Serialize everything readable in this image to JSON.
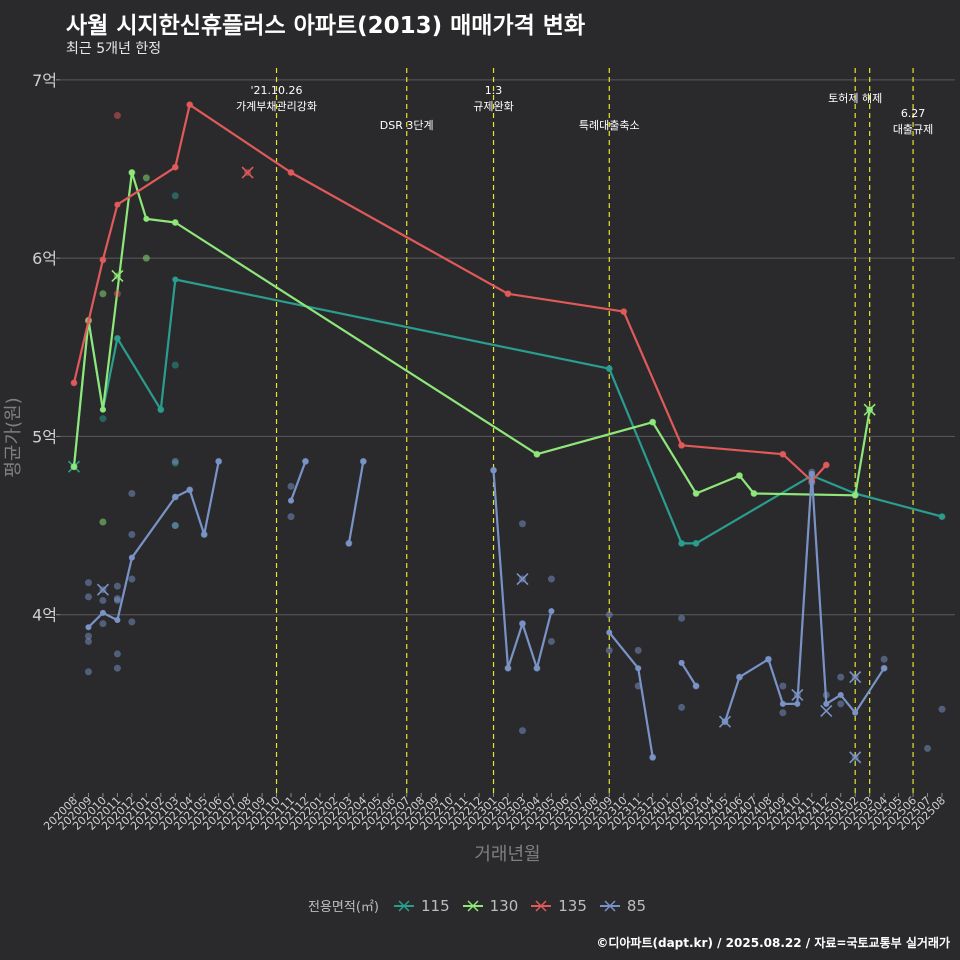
{
  "title": "사월 시지한신휴플러스 아파트(2013) 매매가격 변화",
  "subtitle": "최근 5개년 한정",
  "caption": "©디아파트(dapt.kr) / 2025.08.22 / 자료=국토교통부 실거래가",
  "chart_data": {
    "type": "line",
    "xlabel": "거래년월",
    "ylabel": "평균가(원)",
    "ylim": [
      3.0,
      7.1
    ],
    "y_ticks": [
      {
        "value": 4,
        "label": "4억"
      },
      {
        "value": 5,
        "label": "5억"
      },
      {
        "value": 6,
        "label": "6억"
      },
      {
        "value": 7,
        "label": "7억"
      }
    ],
    "categories": [
      "202008",
      "202009",
      "202010",
      "202011",
      "202012",
      "202101",
      "202102",
      "202103",
      "202104",
      "202105",
      "202106",
      "202107",
      "202108",
      "202109",
      "202110",
      "202111",
      "202112",
      "202201",
      "202202",
      "202203",
      "202204",
      "202205",
      "202206",
      "202207",
      "202208",
      "202209",
      "202210",
      "202211",
      "202212",
      "202301",
      "202302",
      "202303",
      "202304",
      "202305",
      "202306",
      "202307",
      "202308",
      "202309",
      "202310",
      "202311",
      "202312",
      "202401",
      "202402",
      "202403",
      "202404",
      "202405",
      "202406",
      "202407",
      "202408",
      "202409",
      "202410",
      "202411",
      "202412",
      "202501",
      "202502",
      "202503",
      "202504",
      "202505",
      "202506",
      "202507",
      "202508"
    ],
    "legend_title": "전용면적(㎡)",
    "series": [
      {
        "name": "115",
        "color": "#2a9d8f",
        "segments": [
          [
            [
              0,
              4.83
            ],
            [
              1,
              5.65
            ],
            [
              2,
              5.15
            ],
            [
              3,
              5.55
            ],
            [
              6,
              5.15
            ],
            [
              7,
              5.88
            ],
            [
              37,
              5.38
            ],
            [
              42,
              4.4
            ],
            [
              43,
              4.4
            ],
            [
              51,
              4.78
            ],
            [
              54,
              4.68
            ],
            [
              60,
              4.55
            ]
          ]
        ],
        "points": [
          [
            0,
            4.83
          ],
          [
            1,
            5.65
          ],
          [
            2,
            5.1
          ],
          [
            3,
            5.55
          ],
          [
            6,
            5.15
          ],
          [
            7,
            6.35
          ],
          [
            7,
            5.4
          ],
          [
            7,
            4.85
          ],
          [
            7,
            4.5
          ],
          [
            37,
            5.38
          ],
          [
            42,
            4.4
          ],
          [
            43,
            4.4
          ],
          [
            51,
            4.78
          ],
          [
            54,
            4.68
          ],
          [
            60,
            4.55
          ]
        ],
        "crosses": [
          [
            0,
            4.83
          ]
        ]
      },
      {
        "name": "130",
        "color": "#8fe77a",
        "segments": [
          [
            [
              0,
              4.83
            ],
            [
              1,
              5.65
            ],
            [
              2,
              5.15
            ],
            [
              4,
              6.48
            ],
            [
              5,
              6.22
            ],
            [
              7,
              6.2
            ],
            [
              32,
              4.9
            ],
            [
              40,
              5.08
            ],
            [
              43,
              4.68
            ],
            [
              46,
              4.78
            ],
            [
              47,
              4.68
            ],
            [
              54,
              4.67
            ],
            [
              55,
              5.15
            ]
          ]
        ],
        "points": [
          [
            0,
            4.83
          ],
          [
            1,
            5.65
          ],
          [
            2,
            5.8
          ],
          [
            2,
            4.52
          ],
          [
            3,
            5.9
          ],
          [
            4,
            6.48
          ],
          [
            5,
            6.45
          ],
          [
            5,
            6.0
          ],
          [
            7,
            6.2
          ],
          [
            32,
            4.9
          ],
          [
            40,
            5.08
          ],
          [
            43,
            4.68
          ],
          [
            46,
            4.78
          ],
          [
            47,
            4.68
          ],
          [
            54,
            4.67
          ],
          [
            55,
            5.15
          ]
        ],
        "crosses": [
          [
            3,
            5.9
          ],
          [
            55,
            5.15
          ]
        ]
      },
      {
        "name": "135",
        "color": "#e05a5a",
        "segments": [
          [
            [
              0,
              5.3
            ],
            [
              2,
              5.99
            ],
            [
              3,
              6.3
            ],
            [
              7,
              6.51
            ],
            [
              8,
              6.86
            ],
            [
              15,
              6.48
            ],
            [
              30,
              5.8
            ],
            [
              38,
              5.7
            ],
            [
              42,
              4.95
            ],
            [
              49,
              4.9
            ],
            [
              51,
              4.75
            ],
            [
              52,
              4.84
            ]
          ]
        ],
        "points": [
          [
            0,
            5.3
          ],
          [
            1,
            5.65
          ],
          [
            2,
            5.99
          ],
          [
            3,
            6.8
          ],
          [
            3,
            5.8
          ],
          [
            7,
            6.51
          ],
          [
            8,
            6.86
          ],
          [
            12,
            6.48
          ],
          [
            15,
            6.48
          ],
          [
            30,
            5.8
          ],
          [
            38,
            5.7
          ],
          [
            42,
            4.95
          ],
          [
            49,
            4.9
          ],
          [
            51,
            4.75
          ],
          [
            52,
            4.84
          ]
        ],
        "crosses": [
          [
            12,
            6.48
          ]
        ]
      },
      {
        "name": "85",
        "color": "#7a93c7",
        "segments": [
          [
            [
              1,
              3.93
            ],
            [
              2,
              4.01
            ],
            [
              3,
              3.97
            ],
            [
              4,
              4.32
            ],
            [
              7,
              4.66
            ],
            [
              8,
              4.7
            ],
            [
              9,
              4.45
            ],
            [
              10,
              4.86
            ]
          ],
          [
            [
              15,
              4.64
            ],
            [
              16,
              4.86
            ]
          ],
          [
            [
              19,
              4.4
            ],
            [
              20,
              4.86
            ]
          ],
          [
            [
              29,
              4.81
            ],
            [
              30,
              3.7
            ],
            [
              31,
              3.95
            ],
            [
              32,
              3.7
            ],
            [
              33,
              4.02
            ]
          ],
          [
            [
              37,
              3.9
            ],
            [
              39,
              3.7
            ],
            [
              40,
              3.2
            ]
          ],
          [
            [
              42,
              3.73
            ],
            [
              43,
              3.6
            ]
          ],
          [
            [
              45,
              3.4
            ],
            [
              46,
              3.65
            ],
            [
              48,
              3.75
            ],
            [
              49,
              3.5
            ],
            [
              50,
              3.5
            ],
            [
              51,
              4.79
            ],
            [
              52,
              3.5
            ],
            [
              53,
              3.55
            ],
            [
              54,
              3.45
            ],
            [
              56,
              3.7
            ]
          ]
        ],
        "points": [
          [
            1,
            4.18
          ],
          [
            1,
            4.1
          ],
          [
            1,
            3.88
          ],
          [
            1,
            3.85
          ],
          [
            1,
            3.68
          ],
          [
            2,
            4.14
          ],
          [
            2,
            4.08
          ],
          [
            2,
            3.95
          ],
          [
            3,
            4.16
          ],
          [
            3,
            4.09
          ],
          [
            3,
            4.08
          ],
          [
            3,
            3.78
          ],
          [
            3,
            3.7
          ],
          [
            4,
            4.68
          ],
          [
            4,
            4.45
          ],
          [
            4,
            4.2
          ],
          [
            4,
            3.96
          ],
          [
            7,
            4.86
          ],
          [
            7,
            4.66
          ],
          [
            7,
            4.5
          ],
          [
            8,
            4.7
          ],
          [
            9,
            4.45
          ],
          [
            10,
            4.86
          ],
          [
            15,
            4.72
          ],
          [
            15,
            4.55
          ],
          [
            16,
            4.86
          ],
          [
            19,
            4.4
          ],
          [
            20,
            4.86
          ],
          [
            29,
            4.81
          ],
          [
            30,
            3.7
          ],
          [
            31,
            4.51
          ],
          [
            31,
            4.2
          ],
          [
            31,
            3.95
          ],
          [
            31,
            3.35
          ],
          [
            32,
            3.7
          ],
          [
            33,
            4.2
          ],
          [
            33,
            3.85
          ],
          [
            37,
            4.0
          ],
          [
            37,
            3.8
          ],
          [
            39,
            3.8
          ],
          [
            39,
            3.6
          ],
          [
            40,
            3.2
          ],
          [
            42,
            3.98
          ],
          [
            42,
            3.48
          ],
          [
            43,
            3.6
          ],
          [
            45,
            3.4
          ],
          [
            46,
            3.65
          ],
          [
            48,
            3.75
          ],
          [
            49,
            3.6
          ],
          [
            49,
            3.45
          ],
          [
            50,
            3.55
          ],
          [
            51,
            4.8
          ],
          [
            51,
            4.74
          ],
          [
            52,
            3.55
          ],
          [
            53,
            3.65
          ],
          [
            53,
            3.5
          ],
          [
            54,
            3.65
          ],
          [
            54,
            3.2
          ],
          [
            56,
            3.75
          ],
          [
            56,
            3.7
          ],
          [
            59,
            3.25
          ],
          [
            60,
            3.47
          ]
        ],
        "crosses": [
          [
            2,
            4.14
          ],
          [
            31,
            4.2
          ],
          [
            45,
            3.4
          ],
          [
            50,
            3.55
          ],
          [
            52,
            3.46
          ],
          [
            54,
            3.65
          ],
          [
            54,
            3.2
          ]
        ]
      }
    ],
    "events": [
      {
        "index": 14,
        "label": "'21.10.26\n가계부채관리강화",
        "row": 0
      },
      {
        "index": 23,
        "label": "DSR 3단계",
        "row": 2
      },
      {
        "index": 29,
        "label": "1.3\n규제완화",
        "row": 0
      },
      {
        "index": 37,
        "label": "특례대출축소",
        "row": 2
      },
      {
        "index": 54,
        "label": "토허제 해제",
        "row": 1
      },
      {
        "index": 55,
        "label": "",
        "row": 1
      },
      {
        "index": 58,
        "label": "6.27\n대출규제",
        "row": 1.7
      }
    ]
  }
}
